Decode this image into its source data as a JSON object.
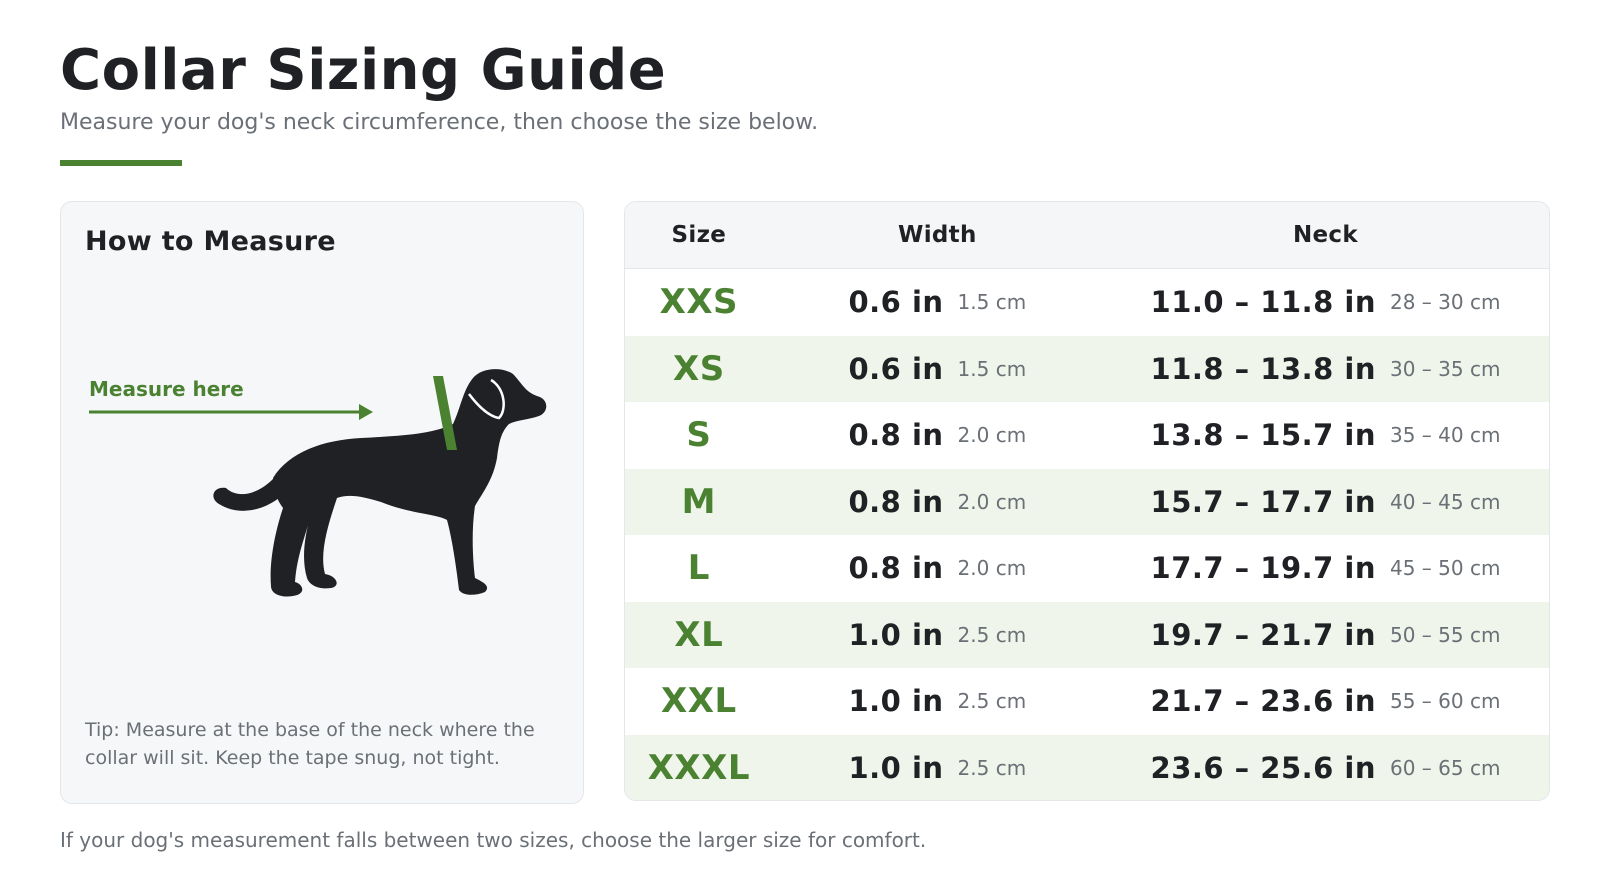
{
  "header": {
    "title": "Collar Sizing Guide",
    "subtitle": "Measure your dog's neck circumference, then choose the size below."
  },
  "measure_card": {
    "title": "How to Measure",
    "callout": "Measure here",
    "tip": "Tip: Measure at the base of the neck where the collar will sit. Keep the tape snug, not tight.",
    "illustration": "dog-silhouette-icon"
  },
  "table": {
    "headers": {
      "size": "Size",
      "width": "Width",
      "neck": "Neck"
    },
    "rows": [
      {
        "size": "XXS",
        "width_in": "0.6 in",
        "width_cm": "1.5 cm",
        "neck_in": "11.0 – 11.8 in",
        "neck_cm": "28 – 30 cm"
      },
      {
        "size": "XS",
        "width_in": "0.6 in",
        "width_cm": "1.5 cm",
        "neck_in": "11.8 – 13.8 in",
        "neck_cm": "30 – 35 cm"
      },
      {
        "size": "S",
        "width_in": "0.8 in",
        "width_cm": "2.0 cm",
        "neck_in": "13.8 – 15.7 in",
        "neck_cm": "35 – 40 cm"
      },
      {
        "size": "M",
        "width_in": "0.8 in",
        "width_cm": "2.0 cm",
        "neck_in": "15.7 – 17.7 in",
        "neck_cm": "40 – 45 cm"
      },
      {
        "size": "L",
        "width_in": "0.8 in",
        "width_cm": "2.0 cm",
        "neck_in": "17.7 – 19.7 in",
        "neck_cm": "45 – 50 cm"
      },
      {
        "size": "XL",
        "width_in": "1.0 in",
        "width_cm": "2.5 cm",
        "neck_in": "19.7 – 21.7 in",
        "neck_cm": "50 – 55 cm"
      },
      {
        "size": "XXL",
        "width_in": "1.0 in",
        "width_cm": "2.5 cm",
        "neck_in": "21.7 – 23.6 in",
        "neck_cm": "55 – 60 cm"
      },
      {
        "size": "XXXL",
        "width_in": "1.0 in",
        "width_cm": "2.5 cm",
        "neck_in": "23.6 – 25.6 in",
        "neck_cm": "60 – 65 cm"
      }
    ]
  },
  "footnote": "If your dog's measurement falls between two sizes, choose the larger size for comfort.",
  "colors": {
    "accent": "#4a8232",
    "text": "#1f2124",
    "muted": "#6b7077",
    "row_alt": "#eff5ea"
  }
}
